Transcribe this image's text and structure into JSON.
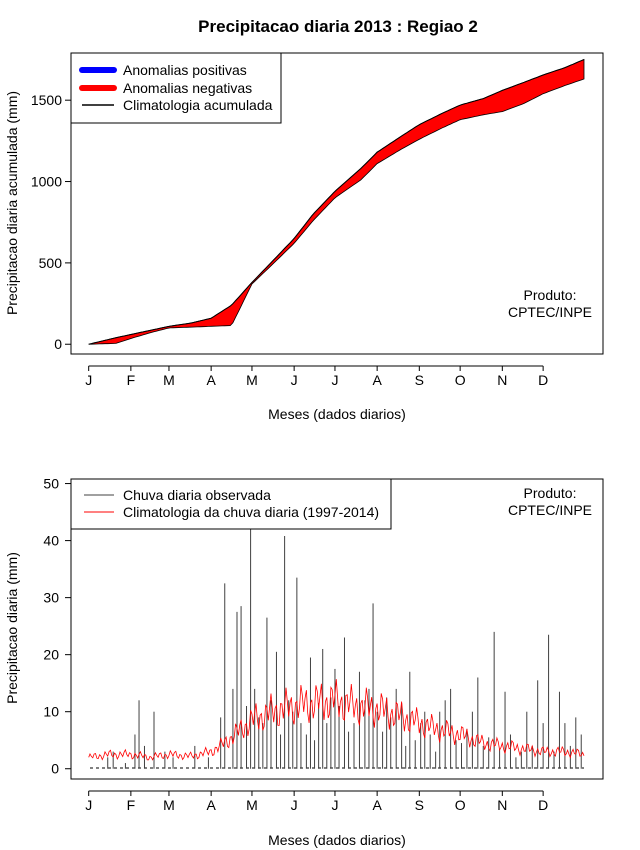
{
  "chart_data": [
    {
      "type": "area",
      "title": "Precipitacao diaria 2013 : Regiao 2",
      "xlabel": "Meses (dados diarios)",
      "ylabel": "Precipitacao diaria acumulada (mm)",
      "month_ticks": [
        "J",
        "F",
        "M",
        "A",
        "M",
        "J",
        "J",
        "A",
        "S",
        "O",
        "N",
        "D"
      ],
      "y_ticks": [
        0,
        500,
        1000,
        1500
      ],
      "ylim": [
        -60,
        1790
      ],
      "xlim_days": [
        -13,
        378
      ],
      "legend": [
        {
          "label": "Anomalias positivas",
          "color": "#0000ff"
        },
        {
          "label": "Anomalias negativas",
          "color": "#ff0000"
        },
        {
          "label": "Climatologia acumulada",
          "color": "#000000"
        }
      ],
      "credit_line1": "Produto:",
      "credit_line2": "CPTEC/INPE",
      "climatology_days": [
        0,
        20,
        31,
        45,
        59,
        75,
        90,
        105,
        120,
        135,
        151,
        165,
        181,
        200,
        212,
        230,
        243,
        260,
        273,
        290,
        304,
        320,
        334,
        350,
        364
      ],
      "climatology_values": [
        0,
        40,
        60,
        85,
        110,
        130,
        160,
        240,
        380,
        510,
        650,
        800,
        940,
        1080,
        1180,
        1280,
        1350,
        1420,
        1470,
        1510,
        1560,
        1610,
        1655,
        1700,
        1750
      ],
      "observed_days": [
        0,
        20,
        31,
        45,
        59,
        75,
        90,
        105,
        120,
        135,
        151,
        165,
        181,
        200,
        212,
        230,
        243,
        260,
        273,
        290,
        304,
        320,
        334,
        350,
        364
      ],
      "observed_values": [
        0,
        5,
        35,
        70,
        100,
        105,
        110,
        115,
        370,
        490,
        620,
        760,
        900,
        1010,
        1110,
        1200,
        1260,
        1330,
        1380,
        1410,
        1430,
        1480,
        1540,
        1590,
        1630
      ]
    },
    {
      "type": "bar",
      "xlabel": "Meses (dados diarios)",
      "ylabel": "Precipitacao diaria (mm)",
      "month_ticks": [
        "J",
        "F",
        "M",
        "A",
        "M",
        "J",
        "J",
        "A",
        "S",
        "O",
        "N",
        "D"
      ],
      "y_ticks": [
        0,
        10,
        20,
        30,
        40,
        50
      ],
      "ylim": [
        -1.8,
        50.8
      ],
      "xlim_days": [
        -13,
        378
      ],
      "legend": [
        {
          "label": "Chuva diaria observada",
          "color": "#404040"
        },
        {
          "label": "Climatologia da chuva diaria (1997-2014)",
          "color": "#ff0000"
        }
      ],
      "credit_line1": "Produto:",
      "credit_line2": "CPTEC/INPE",
      "obs_spike_days": [
        14,
        18,
        27,
        34,
        37,
        41,
        48,
        56,
        62,
        78,
        88,
        97,
        100,
        106,
        109,
        112,
        116,
        119,
        122,
        125,
        128,
        131,
        134,
        138,
        141,
        144,
        147,
        150,
        153,
        156,
        160,
        163,
        166,
        169,
        172,
        175,
        178,
        181,
        184,
        188,
        191,
        195,
        199,
        203,
        206,
        209,
        212,
        216,
        219,
        222,
        226,
        230,
        233,
        236,
        240,
        244,
        247,
        251,
        255,
        258,
        262,
        266,
        270,
        274,
        278,
        282,
        286,
        290,
        294,
        298,
        302,
        306,
        310,
        314,
        318,
        322,
        326,
        330,
        334,
        338,
        342,
        346,
        350,
        354,
        358,
        362
      ],
      "obs_spike_values": [
        2,
        3,
        1,
        6,
        12,
        4,
        10,
        3,
        2,
        4,
        2,
        9,
        32.5,
        14,
        27.5,
        28.5,
        11,
        43,
        14,
        9,
        8,
        26.5,
        12,
        20.5,
        6,
        40.8,
        12,
        10,
        33.5,
        8,
        6,
        19.5,
        5,
        11.5,
        21,
        8,
        12.5,
        17.5,
        11,
        23,
        6.5,
        8,
        17,
        12,
        14,
        29,
        10,
        6.5,
        12.5,
        9,
        14,
        11.5,
        4,
        17,
        5,
        8,
        10,
        6,
        3,
        10,
        12,
        14,
        5,
        4.5,
        7,
        10,
        16,
        4,
        5.5,
        24,
        3.5,
        13.5,
        6,
        2,
        3,
        10,
        4,
        15.5,
        8,
        23.5,
        3,
        13.5,
        8,
        4,
        9,
        6
      ],
      "climatology_daily_days": [
        0,
        15,
        31,
        45,
        59,
        75,
        90,
        100,
        110,
        120,
        135,
        151,
        165,
        181,
        195,
        212,
        226,
        243,
        255,
        273,
        290,
        304,
        320,
        334,
        350,
        364
      ],
      "climatology_daily_values": [
        2.0,
        2.5,
        2.5,
        2.0,
        2.5,
        2.2,
        3.0,
        4.5,
        6.5,
        8.5,
        10.0,
        11.0,
        11.5,
        12.0,
        11.0,
        10.5,
        9.5,
        8.0,
        7.0,
        6.0,
        4.5,
        4.0,
        3.5,
        3.0,
        3.0,
        2.5
      ]
    }
  ]
}
